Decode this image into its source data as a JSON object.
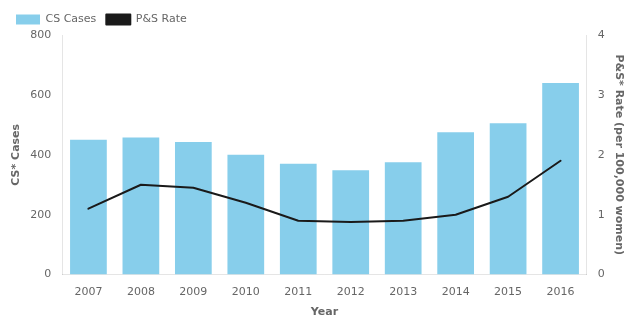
{
  "chart_data": {
    "type": "bar",
    "xlabel": "Year",
    "ylabel": "CS* Cases",
    "y2label": "P&S* Rate (per 100,000 women)",
    "categories": [
      "2007",
      "2008",
      "2009",
      "2010",
      "2011",
      "2012",
      "2013",
      "2014",
      "2015",
      "2016"
    ],
    "series": [
      {
        "name": "CS Cases",
        "type": "bar",
        "color": "#87CEEB",
        "values": [
          450,
          458,
          443,
          400,
          370,
          348,
          375,
          475,
          505,
          640
        ]
      },
      {
        "name": "P&S Rate",
        "type": "line",
        "color": "#1a1a1a",
        "axis": "y2",
        "values": [
          1.1,
          1.5,
          1.45,
          1.2,
          0.9,
          0.88,
          0.9,
          1.0,
          1.3,
          1.9
        ]
      }
    ],
    "ylim": [
      0,
      800
    ],
    "yticks": [
      0,
      200,
      400,
      600,
      800
    ],
    "y2lim": [
      0,
      4
    ],
    "y2ticks": [
      0,
      1,
      2,
      3,
      4
    ],
    "grid": false,
    "legend": "upper left"
  }
}
